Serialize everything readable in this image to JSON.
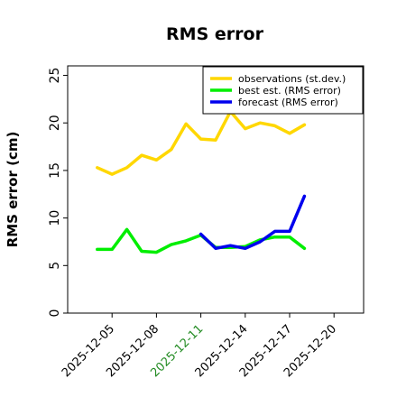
{
  "chart_data": {
    "type": "line",
    "title": "RMS error",
    "xlabel": "",
    "ylabel": "RMS error (cm)",
    "xlim": [
      "2025-12-02",
      "2025-12-22"
    ],
    "ylim": [
      0,
      26
    ],
    "yticks": [
      0,
      5,
      10,
      15,
      20,
      25
    ],
    "xticks": [
      {
        "date": "2025-12-05",
        "label": "2025-12-05",
        "color": "#000000"
      },
      {
        "date": "2025-12-08",
        "label": "2025-12-08",
        "color": "#000000"
      },
      {
        "date": "2025-12-11",
        "label": "2025-12-11",
        "color": "#228b22"
      },
      {
        "date": "2025-12-14",
        "label": "2025-12-14",
        "color": "#000000"
      },
      {
        "date": "2025-12-17",
        "label": "2025-12-17",
        "color": "#000000"
      },
      {
        "date": "2025-12-20",
        "label": "2025-12-20",
        "color": "#000000"
      }
    ],
    "grid": false,
    "legend_position": "top-right",
    "series": [
      {
        "name": "observations (st.dev.)",
        "color": "#ffd700",
        "x": [
          "2025-12-04",
          "2025-12-05",
          "2025-12-06",
          "2025-12-07",
          "2025-12-08",
          "2025-12-09",
          "2025-12-10",
          "2025-12-11",
          "2025-12-12",
          "2025-12-13",
          "2025-12-14",
          "2025-12-15",
          "2025-12-16",
          "2025-12-17",
          "2025-12-18"
        ],
        "values": [
          15.3,
          14.6,
          15.3,
          16.6,
          16.1,
          17.2,
          19.9,
          18.3,
          18.2,
          21.2,
          19.4,
          20.0,
          19.7,
          18.9,
          19.8
        ]
      },
      {
        "name": "best est. (RMS error)",
        "color": "#00ee00",
        "x": [
          "2025-12-04",
          "2025-12-05",
          "2025-12-06",
          "2025-12-07",
          "2025-12-08",
          "2025-12-09",
          "2025-12-10",
          "2025-12-11",
          "2025-12-12",
          "2025-12-13",
          "2025-12-14",
          "2025-12-15",
          "2025-12-16",
          "2025-12-17",
          "2025-12-18"
        ],
        "values": [
          6.7,
          6.7,
          8.8,
          6.5,
          6.4,
          7.2,
          7.6,
          8.2,
          6.9,
          6.9,
          7.0,
          7.7,
          8.0,
          8.0,
          6.8
        ]
      },
      {
        "name": "forecast (RMS error)",
        "color": "#0000ee",
        "x": [
          "2025-12-11",
          "2025-12-12",
          "2025-12-13",
          "2025-12-14",
          "2025-12-15",
          "2025-12-16",
          "2025-12-17",
          "2025-12-18"
        ],
        "values": [
          8.3,
          6.8,
          7.1,
          6.8,
          7.5,
          8.6,
          8.6,
          12.3
        ]
      }
    ]
  }
}
